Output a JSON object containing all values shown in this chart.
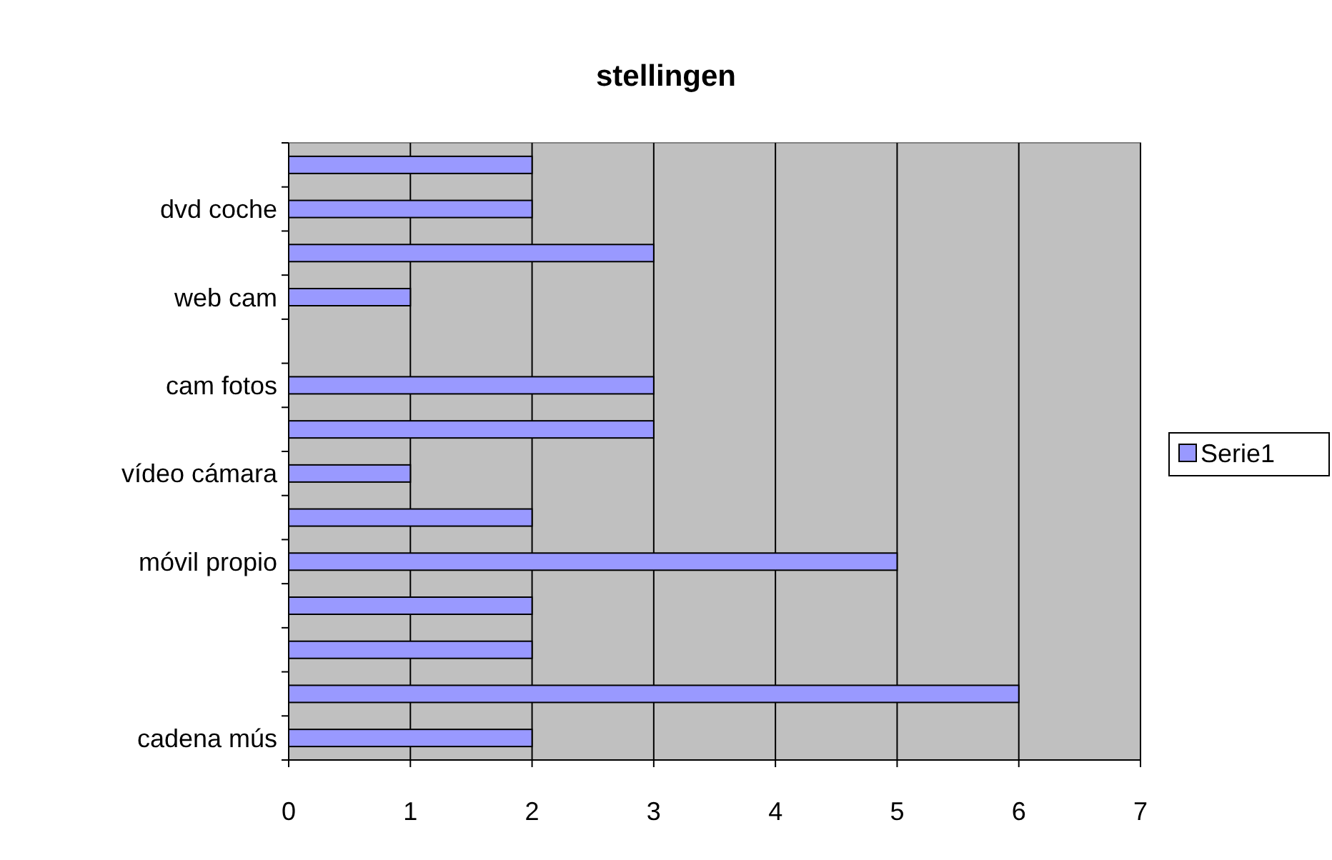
{
  "chart_data": {
    "type": "bar",
    "orientation": "horizontal",
    "title": "stellingen",
    "categories": [
      null,
      "dvd coche",
      null,
      "web cam",
      null,
      "cam fotos",
      null,
      "vídeo cámara",
      null,
      "móvil propio",
      null,
      null,
      null,
      "cadena mús"
    ],
    "series": [
      {
        "name": "Serie1",
        "color": "#9999ff",
        "values": [
          2,
          2,
          3,
          1,
          null,
          3,
          3,
          1,
          2,
          5,
          2,
          2,
          6,
          2
        ]
      }
    ],
    "xlim": [
      0,
      7
    ],
    "xticks": [
      0,
      1,
      2,
      3,
      4,
      5,
      6,
      7
    ],
    "grid": "x",
    "legend": "right"
  }
}
